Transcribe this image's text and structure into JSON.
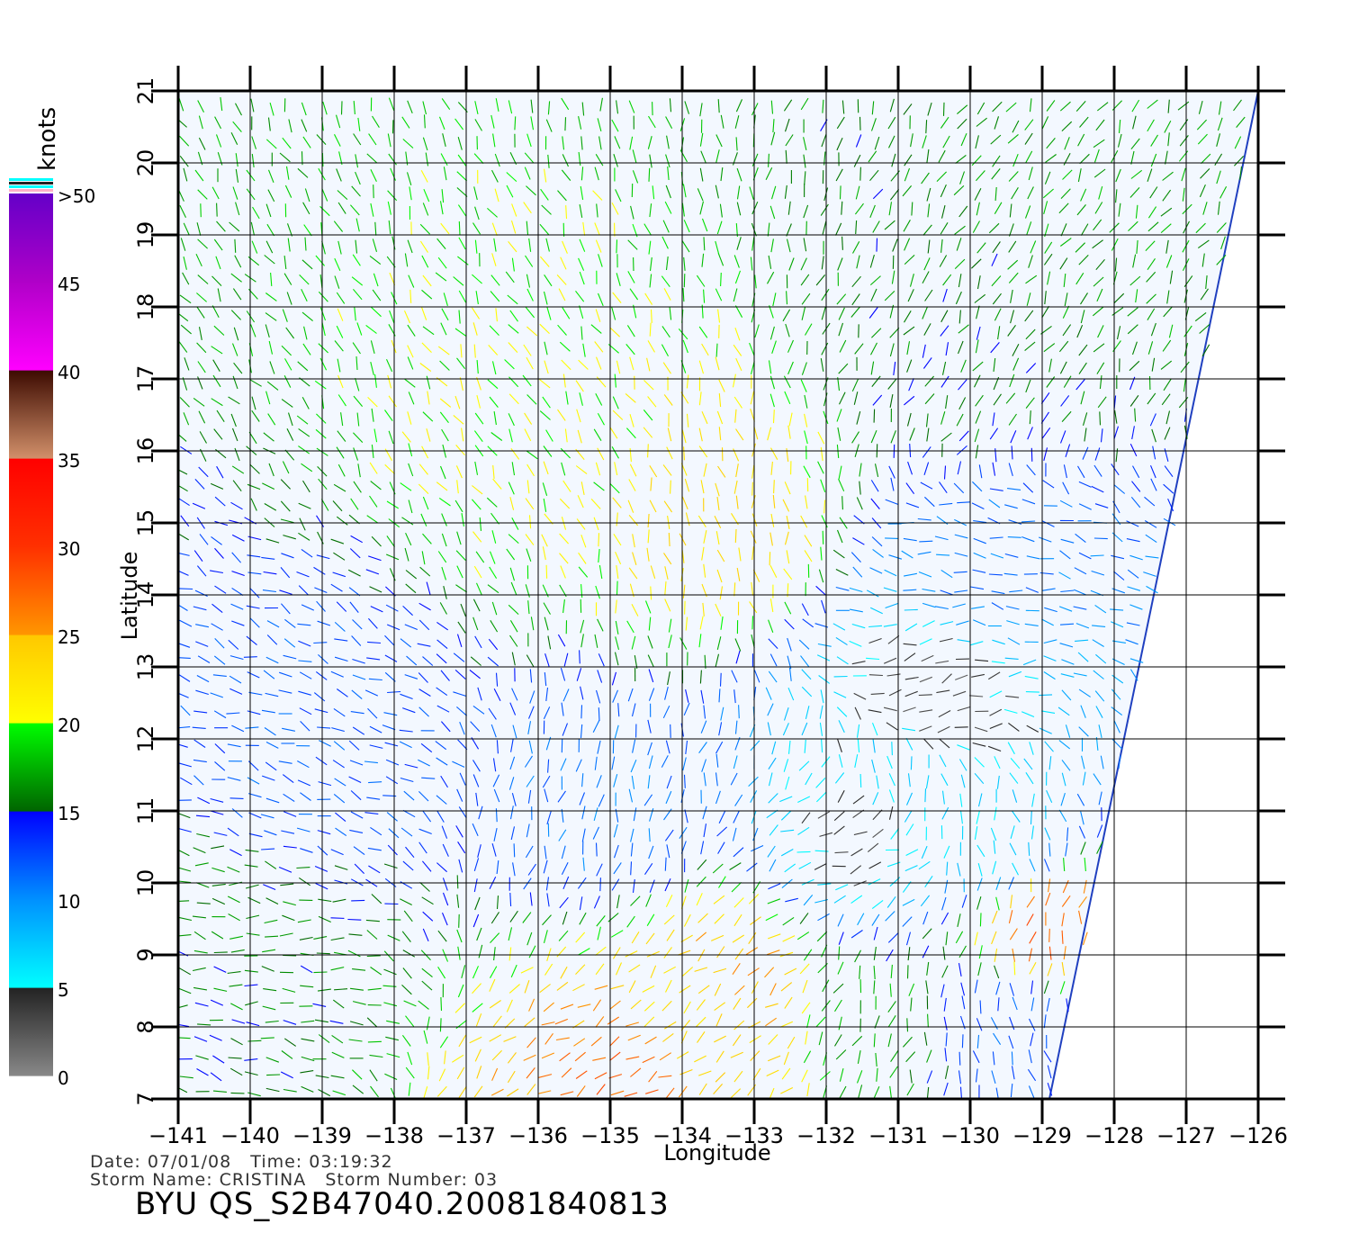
{
  "map": {
    "type": "wind vector map",
    "x_axis": {
      "label": "Longitude",
      "min": -141,
      "max": -126,
      "ticks": [
        "-141",
        "-140",
        "-139",
        "-138",
        "-137",
        "-136",
        "-135",
        "-134",
        "-133",
        "-132",
        "-131",
        "-130",
        "-129",
        "-128",
        "-127",
        "-126"
      ]
    },
    "y_axis": {
      "label": "Latitude",
      "min": 7,
      "max": 21,
      "ticks": [
        "7",
        "8",
        "9",
        "10",
        "11",
        "12",
        "13",
        "14",
        "15",
        "16",
        "17",
        "18",
        "19",
        "20",
        "21"
      ]
    },
    "grid": true,
    "colorbar": {
      "unit": "knots",
      "labels": [
        "0",
        "5",
        "10",
        "15",
        "20",
        "25",
        "30",
        "35",
        "40",
        "45",
        ">50"
      ],
      "bands": [
        {
          "range": [
            0,
            5
          ],
          "colors": [
            "#888888",
            "#222222"
          ]
        },
        {
          "range": [
            5,
            10
          ],
          "colors": [
            "#00ffff",
            "#0090ff"
          ]
        },
        {
          "range": [
            10,
            15
          ],
          "colors": [
            "#0090ff",
            "#0000ff"
          ]
        },
        {
          "range": [
            15,
            20
          ],
          "colors": [
            "#006400",
            "#00ff00"
          ]
        },
        {
          "range": [
            20,
            25
          ],
          "colors": [
            "#ffff00",
            "#ffc800"
          ]
        },
        {
          "range": [
            25,
            30
          ],
          "colors": [
            "#ff9600",
            "#ff3000"
          ]
        },
        {
          "range": [
            30,
            35
          ],
          "colors": [
            "#ff3000",
            "#ff0000"
          ]
        },
        {
          "range": [
            35,
            40
          ],
          "colors": [
            "#d2906a",
            "#3c0a00"
          ]
        },
        {
          "range": [
            40,
            45
          ],
          "colors": [
            "#ff00ff",
            "#b000c8"
          ]
        },
        {
          "range": [
            45,
            50
          ],
          "colors": [
            "#b000c8",
            "#6400c8"
          ]
        }
      ]
    },
    "swath": {
      "corners_lonlat": [
        [
          -141,
          7
        ],
        [
          -128.9,
          7
        ],
        [
          -126,
          21
        ],
        [
          -141,
          21
        ]
      ]
    },
    "wind_regions": [
      {
        "lon": -128,
        "lat": 19,
        "speed": 17,
        "dir_deg": 60
      },
      {
        "lon": -130,
        "lat": 17,
        "speed": 16,
        "dir_deg": 60
      },
      {
        "lon": -136,
        "lat": 16,
        "speed": 20,
        "dir_deg": 120
      },
      {
        "lon": -133.5,
        "lat": 15,
        "speed": 23,
        "dir_deg": 100
      },
      {
        "lon": -139,
        "lat": 12,
        "speed": 12,
        "dir_deg": 160
      },
      {
        "lon": -140,
        "lat": 9,
        "speed": 16,
        "dir_deg": 170
      },
      {
        "lon": -135,
        "lat": 11,
        "speed": 11,
        "dir_deg": 80
      },
      {
        "lon": -130.5,
        "lat": 12.6,
        "speed": 3,
        "dir_deg": 200
      },
      {
        "lon": -131.5,
        "lat": 10.6,
        "speed": 4,
        "dir_deg": 20
      },
      {
        "lon": -131,
        "lat": 11.5,
        "speed": 7,
        "dir_deg": 90
      },
      {
        "lon": -129.5,
        "lat": 10.5,
        "speed": 6,
        "dir_deg": 100
      },
      {
        "lon": -129.8,
        "lat": 14.3,
        "speed": 11,
        "dir_deg": 170
      },
      {
        "lon": -134,
        "lat": 8.0,
        "speed": 22,
        "dir_deg": 45
      },
      {
        "lon": -133.3,
        "lat": 8.6,
        "speed": 25,
        "dir_deg": 40
      },
      {
        "lon": -134.5,
        "lat": 7.4,
        "speed": 28,
        "dir_deg": 30
      },
      {
        "lon": -131.3,
        "lat": 8.2,
        "speed": 17,
        "dir_deg": 70
      },
      {
        "lon": -129,
        "lat": 9.5,
        "speed": 28,
        "dir_deg": 75
      },
      {
        "lon": -129.5,
        "lat": 8.0,
        "speed": 12,
        "dir_deg": 100
      }
    ]
  },
  "footer": {
    "date_line": "Date: 07/01/08   Time: 03:19:32",
    "storm_line": "Storm Name: CRISTINA   Storm Number: 03",
    "product_id": "BYU QS_S2B47040.20081840813"
  }
}
